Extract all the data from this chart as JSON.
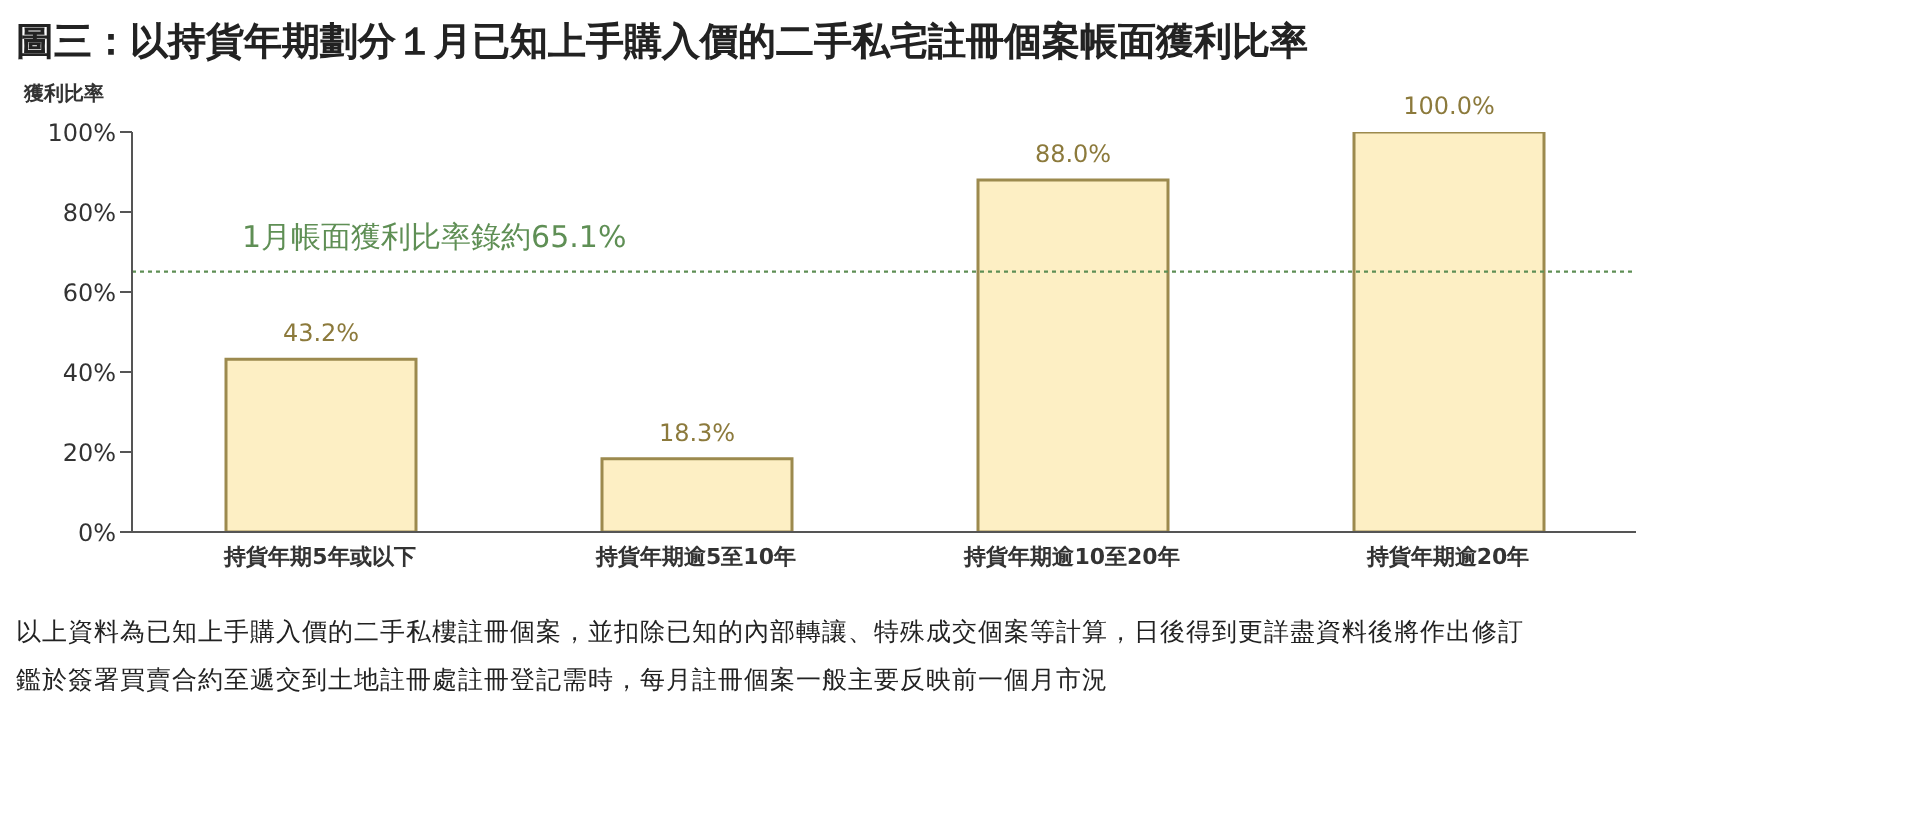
{
  "chart_data": {
    "type": "bar",
    "title": "圖三：以持貨年期劃分１月已知上手購入價的二手私宅註冊個案帳面獲利比率",
    "ylabel": "獲利比率",
    "categories": [
      "持貨年期5年或以下",
      "持貨年期逾5至10年",
      "持貨年期逾10至20年",
      "持貨年期逾20年"
    ],
    "values": [
      43.2,
      18.3,
      88.0,
      100.0
    ],
    "value_labels": [
      "43.2%",
      "18.3%",
      "88.0%",
      "100.0%"
    ],
    "color": "#fdefc4",
    "ylim": [
      0,
      100
    ],
    "yticks": [
      {
        "value": 0,
        "label": "0%"
      },
      {
        "value": 20,
        "label": "20%"
      },
      {
        "value": 40,
        "label": "40%"
      },
      {
        "value": 60,
        "label": "60%"
      },
      {
        "value": 80,
        "label": "80%"
      },
      {
        "value": 100,
        "label": "100%"
      }
    ],
    "ref_lines": [
      {
        "axis": "y",
        "value": 65.1,
        "label": "1月帳面獲利比率錄約65.1%",
        "color": "#5f8f55",
        "line_style": "dotted"
      }
    ],
    "grid": false,
    "legend": false,
    "annotations": [
      "以上資料為已知上手購入價的二手私樓註冊個案，並扣除已知的內部轉讓、特殊成交個案等計算，日後得到更詳盡資料後將作出修訂",
      "鑑於簽署買賣合約至遞交到土地註冊處註冊登記需時，每月註冊個案一般主要反映前一個月市況"
    ]
  }
}
